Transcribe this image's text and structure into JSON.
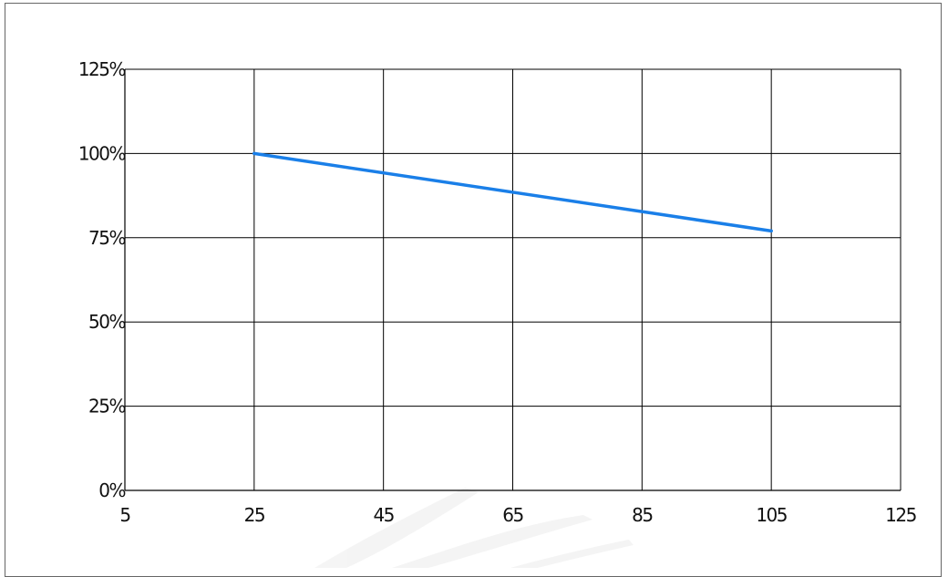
{
  "chart_data": {
    "type": "line",
    "title": "",
    "xlabel": "",
    "ylabel": "",
    "x_ticks": [
      5,
      25,
      45,
      65,
      85,
      105,
      125
    ],
    "x_tick_labels": [
      "5",
      "25",
      "45",
      "65",
      "85",
      "105",
      "125"
    ],
    "y_ticks": [
      0,
      25,
      50,
      75,
      100,
      125
    ],
    "y_tick_labels": [
      "0%",
      "25%",
      "50%",
      "75%",
      "100%",
      "125%"
    ],
    "xlim": [
      5,
      125
    ],
    "ylim": [
      0,
      125
    ],
    "grid": true,
    "series": [
      {
        "color": "#1a7fe8",
        "x": [
          25,
          105
        ],
        "y": [
          100,
          77
        ]
      }
    ]
  }
}
